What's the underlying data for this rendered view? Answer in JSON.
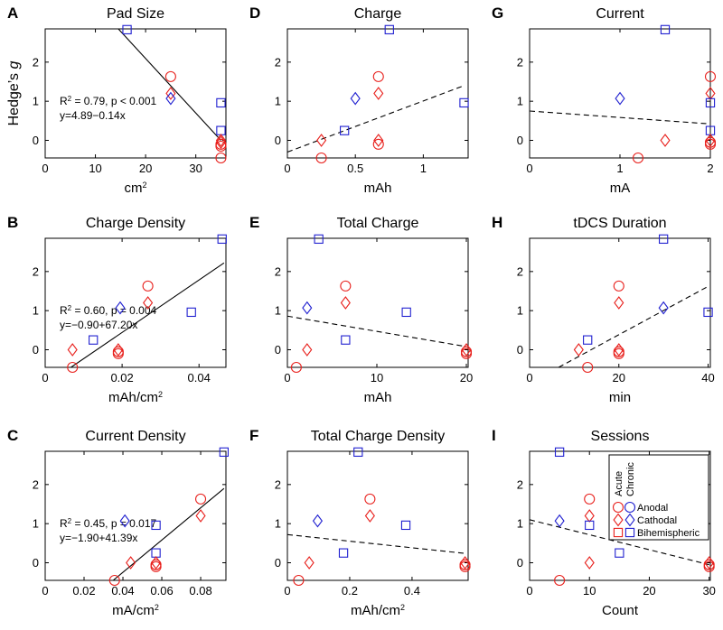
{
  "colors": {
    "acute": "#e8201c",
    "chronic": "#2020d0",
    "axis": "#000000"
  },
  "legend": {
    "header_acute": "Acute",
    "header_chronic": "Chronic",
    "rows": [
      "Anodal",
      "Cathodal",
      "Bihemispheric"
    ]
  },
  "chart_data": [
    {
      "id": "A",
      "type": "scatter",
      "title": "Pad Size",
      "xlabel": "cm",
      "xlabel_sup": "2",
      "ylabel_prefix": "Hedge’s ",
      "ylabel_italic": "g",
      "xlim": [
        0,
        36
      ],
      "ylim": [
        -0.45,
        2.85
      ],
      "xticks": [
        0,
        10,
        20,
        30
      ],
      "xtick_labels": [
        "0",
        "10",
        "20",
        "30"
      ],
      "yticks": [
        0,
        1,
        2
      ],
      "ytick_labels": [
        "0",
        "1",
        "2"
      ],
      "fit": {
        "style": "solid",
        "x": [
          14.5,
          35
        ],
        "y": [
          2.86,
          0.0
        ]
      },
      "annotation": [
        "R",
        "2",
        " = 0.79, p < 0.001",
        "y=4.89−0.14x"
      ],
      "points": [
        {
          "x": 16.3,
          "y": 2.83,
          "marker": "square",
          "group": "chronic"
        },
        {
          "x": 25,
          "y": 1.63,
          "marker": "circle",
          "group": "acute"
        },
        {
          "x": 25,
          "y": 1.2,
          "marker": "diamond",
          "group": "acute"
        },
        {
          "x": 25,
          "y": 1.07,
          "marker": "diamond",
          "group": "chronic"
        },
        {
          "x": 35,
          "y": 0.96,
          "marker": "square",
          "group": "chronic"
        },
        {
          "x": 35,
          "y": 0.25,
          "marker": "square",
          "group": "chronic"
        },
        {
          "x": 35,
          "y": 0.0,
          "marker": "diamond",
          "group": "acute"
        },
        {
          "x": 35,
          "y": -0.05,
          "marker": "diamond",
          "group": "acute"
        },
        {
          "x": 35,
          "y": -0.1,
          "marker": "circle",
          "group": "acute"
        },
        {
          "x": 35,
          "y": -0.15,
          "marker": "circle",
          "group": "acute"
        },
        {
          "x": 35,
          "y": -0.45,
          "marker": "circle",
          "group": "acute"
        }
      ]
    },
    {
      "id": "D",
      "type": "scatter",
      "title": "Charge",
      "xlabel": "mAh",
      "xlim": [
        0,
        1.33
      ],
      "ylim": [
        -0.45,
        2.85
      ],
      "xticks": [
        0,
        0.5,
        1
      ],
      "xtick_labels": [
        "0",
        "0.5",
        "1"
      ],
      "yticks": [
        0,
        1,
        2
      ],
      "ytick_labels": [
        "0",
        "1",
        "2"
      ],
      "fit": {
        "style": "dashed",
        "x": [
          0,
          1.3
        ],
        "y": [
          -0.3,
          1.4
        ]
      },
      "points": [
        {
          "x": 0.25,
          "y": -0.45,
          "marker": "circle",
          "group": "acute"
        },
        {
          "x": 0.25,
          "y": 0.0,
          "marker": "diamond",
          "group": "acute"
        },
        {
          "x": 0.42,
          "y": 0.25,
          "marker": "square",
          "group": "chronic"
        },
        {
          "x": 0.5,
          "y": 1.07,
          "marker": "diamond",
          "group": "chronic"
        },
        {
          "x": 0.67,
          "y": 1.63,
          "marker": "circle",
          "group": "acute"
        },
        {
          "x": 0.67,
          "y": 1.2,
          "marker": "diamond",
          "group": "acute"
        },
        {
          "x": 0.67,
          "y": 0.0,
          "marker": "diamond",
          "group": "acute"
        },
        {
          "x": 0.67,
          "y": -0.1,
          "marker": "circle",
          "group": "acute"
        },
        {
          "x": 0.75,
          "y": 2.83,
          "marker": "square",
          "group": "chronic"
        },
        {
          "x": 1.3,
          "y": 0.96,
          "marker": "square",
          "group": "chronic"
        }
      ]
    },
    {
      "id": "G",
      "type": "scatter",
      "title": "Current",
      "xlabel": "mA",
      "xlim": [
        0,
        2.0
      ],
      "ylim": [
        -0.45,
        2.85
      ],
      "xticks": [
        0,
        1,
        2
      ],
      "xtick_labels": [
        "0",
        "1",
        "2"
      ],
      "yticks": [
        0,
        1,
        2
      ],
      "ytick_labels": [
        "0",
        "1",
        "2"
      ],
      "fit": {
        "style": "dashed",
        "x": [
          0,
          2
        ],
        "y": [
          0.75,
          0.42
        ]
      },
      "points": [
        {
          "x": 1.0,
          "y": 1.07,
          "marker": "diamond",
          "group": "chronic"
        },
        {
          "x": 1.2,
          "y": -0.45,
          "marker": "circle",
          "group": "acute"
        },
        {
          "x": 1.5,
          "y": 2.83,
          "marker": "square",
          "group": "chronic"
        },
        {
          "x": 1.5,
          "y": 0.0,
          "marker": "diamond",
          "group": "acute"
        },
        {
          "x": 2.0,
          "y": 1.63,
          "marker": "circle",
          "group": "acute"
        },
        {
          "x": 2.0,
          "y": 1.2,
          "marker": "diamond",
          "group": "acute"
        },
        {
          "x": 2.0,
          "y": 0.96,
          "marker": "square",
          "group": "chronic"
        },
        {
          "x": 2.0,
          "y": 0.25,
          "marker": "square",
          "group": "chronic"
        },
        {
          "x": 2.0,
          "y": 0.0,
          "marker": "diamond",
          "group": "acute"
        },
        {
          "x": 2.0,
          "y": -0.05,
          "marker": "circle",
          "group": "acute"
        },
        {
          "x": 2.0,
          "y": -0.1,
          "marker": "circle",
          "group": "acute"
        }
      ]
    },
    {
      "id": "B",
      "type": "scatter",
      "title": "Charge Density",
      "xlabel": "mAh/cm",
      "xlabel_sup": "2",
      "xlim": [
        0,
        0.047
      ],
      "ylim": [
        -0.45,
        2.85
      ],
      "xticks": [
        0,
        0.02,
        0.04
      ],
      "xtick_labels": [
        "0",
        "0.02",
        "0.04"
      ],
      "yticks": [
        0,
        1,
        2
      ],
      "ytick_labels": [
        "0",
        "1",
        "2"
      ],
      "fit": {
        "style": "solid",
        "x": [
          0.0067,
          0.0465
        ],
        "y": [
          -0.45,
          2.22
        ]
      },
      "annotation": [
        "R",
        "2",
        " = 0.60, p = 0.004",
        "y=−0.90+67.20x"
      ],
      "points": [
        {
          "x": 0.0071,
          "y": -0.45,
          "marker": "circle",
          "group": "acute"
        },
        {
          "x": 0.0071,
          "y": 0.0,
          "marker": "diamond",
          "group": "acute"
        },
        {
          "x": 0.0125,
          "y": 0.25,
          "marker": "square",
          "group": "chronic"
        },
        {
          "x": 0.019,
          "y": 0.0,
          "marker": "diamond",
          "group": "acute"
        },
        {
          "x": 0.019,
          "y": -0.05,
          "marker": "circle",
          "group": "acute"
        },
        {
          "x": 0.019,
          "y": -0.1,
          "marker": "circle",
          "group": "acute"
        },
        {
          "x": 0.0195,
          "y": 1.07,
          "marker": "diamond",
          "group": "chronic"
        },
        {
          "x": 0.0267,
          "y": 1.63,
          "marker": "circle",
          "group": "acute"
        },
        {
          "x": 0.0267,
          "y": 1.2,
          "marker": "diamond",
          "group": "acute"
        },
        {
          "x": 0.038,
          "y": 0.96,
          "marker": "square",
          "group": "chronic"
        },
        {
          "x": 0.046,
          "y": 2.83,
          "marker": "square",
          "group": "chronic"
        }
      ]
    },
    {
      "id": "E",
      "type": "scatter",
      "title": "Total Charge",
      "xlabel": "mAh",
      "xlim": [
        0,
        20.2
      ],
      "ylim": [
        -0.45,
        2.85
      ],
      "xticks": [
        0,
        10,
        20
      ],
      "xtick_labels": [
        "0",
        "10",
        "20"
      ],
      "yticks": [
        0,
        1,
        2
      ],
      "ytick_labels": [
        "0",
        "1",
        "2"
      ],
      "fit": {
        "style": "dashed",
        "x": [
          0,
          20
        ],
        "y": [
          0.86,
          0.08
        ]
      },
      "points": [
        {
          "x": 1.0,
          "y": -0.45,
          "marker": "circle",
          "group": "acute"
        },
        {
          "x": 2.2,
          "y": 1.07,
          "marker": "diamond",
          "group": "chronic"
        },
        {
          "x": 2.2,
          "y": 0.0,
          "marker": "diamond",
          "group": "acute"
        },
        {
          "x": 3.5,
          "y": 2.83,
          "marker": "square",
          "group": "chronic"
        },
        {
          "x": 6.5,
          "y": 1.63,
          "marker": "circle",
          "group": "acute"
        },
        {
          "x": 6.5,
          "y": 1.2,
          "marker": "diamond",
          "group": "acute"
        },
        {
          "x": 6.5,
          "y": 0.25,
          "marker": "square",
          "group": "chronic"
        },
        {
          "x": 13.3,
          "y": 0.96,
          "marker": "square",
          "group": "chronic"
        },
        {
          "x": 20,
          "y": 0.0,
          "marker": "diamond",
          "group": "acute"
        },
        {
          "x": 20,
          "y": -0.05,
          "marker": "circle",
          "group": "acute"
        },
        {
          "x": 20,
          "y": -0.1,
          "marker": "circle",
          "group": "acute"
        }
      ]
    },
    {
      "id": "H",
      "type": "scatter",
      "title": "tDCS Duration",
      "xlabel": "min",
      "xlim": [
        0,
        40.5
      ],
      "ylim": [
        -0.45,
        2.85
      ],
      "xticks": [
        0,
        20,
        40
      ],
      "xtick_labels": [
        "0",
        "20",
        "40"
      ],
      "yticks": [
        0,
        1,
        2
      ],
      "ytick_labels": [
        "0",
        "1",
        "2"
      ],
      "fit": {
        "style": "dashed",
        "x": [
          6.5,
          40
        ],
        "y": [
          -0.45,
          1.62
        ]
      },
      "points": [
        {
          "x": 11,
          "y": 0.0,
          "marker": "diamond",
          "group": "acute"
        },
        {
          "x": 13,
          "y": 0.25,
          "marker": "square",
          "group": "chronic"
        },
        {
          "x": 13,
          "y": -0.45,
          "marker": "circle",
          "group": "acute"
        },
        {
          "x": 20,
          "y": 1.63,
          "marker": "circle",
          "group": "acute"
        },
        {
          "x": 20,
          "y": 1.2,
          "marker": "diamond",
          "group": "acute"
        },
        {
          "x": 20,
          "y": 0.0,
          "marker": "diamond",
          "group": "acute"
        },
        {
          "x": 20,
          "y": -0.05,
          "marker": "circle",
          "group": "acute"
        },
        {
          "x": 20,
          "y": -0.1,
          "marker": "circle",
          "group": "acute"
        },
        {
          "x": 30,
          "y": 2.83,
          "marker": "square",
          "group": "chronic"
        },
        {
          "x": 30,
          "y": 1.07,
          "marker": "diamond",
          "group": "chronic"
        },
        {
          "x": 40,
          "y": 0.96,
          "marker": "square",
          "group": "chronic"
        }
      ]
    },
    {
      "id": "C",
      "type": "scatter",
      "title": "Current Density",
      "xlabel": "mA/cm",
      "xlabel_sup": "2",
      "xlim": [
        0,
        0.093
      ],
      "ylim": [
        -0.45,
        2.85
      ],
      "xticks": [
        0,
        0.02,
        0.04,
        0.06,
        0.08
      ],
      "xtick_labels": [
        "0",
        "0.02",
        "0.04",
        "0.06",
        "0.08"
      ],
      "yticks": [
        0,
        1,
        2
      ],
      "ytick_labels": [
        "0",
        "1",
        "2"
      ],
      "fit": {
        "style": "solid",
        "x": [
          0.035,
          0.092
        ],
        "y": [
          -0.45,
          1.9
        ]
      },
      "annotation": [
        "R",
        "2",
        " = 0.45, p = 0.017",
        "y=−1.90+41.39x"
      ],
      "points": [
        {
          "x": 0.0357,
          "y": -0.45,
          "marker": "circle",
          "group": "acute"
        },
        {
          "x": 0.041,
          "y": 1.07,
          "marker": "diamond",
          "group": "chronic"
        },
        {
          "x": 0.044,
          "y": 0.0,
          "marker": "diamond",
          "group": "acute"
        },
        {
          "x": 0.057,
          "y": 0.96,
          "marker": "square",
          "group": "chronic"
        },
        {
          "x": 0.057,
          "y": 0.25,
          "marker": "square",
          "group": "chronic"
        },
        {
          "x": 0.057,
          "y": 0.0,
          "marker": "diamond",
          "group": "acute"
        },
        {
          "x": 0.057,
          "y": -0.05,
          "marker": "circle",
          "group": "acute"
        },
        {
          "x": 0.057,
          "y": -0.1,
          "marker": "circle",
          "group": "acute"
        },
        {
          "x": 0.08,
          "y": 1.63,
          "marker": "circle",
          "group": "acute"
        },
        {
          "x": 0.08,
          "y": 1.2,
          "marker": "diamond",
          "group": "acute"
        },
        {
          "x": 0.092,
          "y": 2.83,
          "marker": "square",
          "group": "chronic"
        }
      ]
    },
    {
      "id": "F",
      "type": "scatter",
      "title": "Total Charge Density",
      "xlabel": "mAh/cm",
      "xlabel_sup": "2",
      "xlim": [
        0,
        0.58
      ],
      "ylim": [
        -0.45,
        2.85
      ],
      "xticks": [
        0,
        0.2,
        0.4
      ],
      "xtick_labels": [
        "0",
        "0.2",
        "0.4"
      ],
      "yticks": [
        0,
        1,
        2
      ],
      "ytick_labels": [
        "0",
        "1",
        "2"
      ],
      "fit": {
        "style": "dashed",
        "x": [
          0,
          0.57
        ],
        "y": [
          0.72,
          0.24
        ]
      },
      "points": [
        {
          "x": 0.036,
          "y": -0.45,
          "marker": "circle",
          "group": "acute"
        },
        {
          "x": 0.07,
          "y": 0.0,
          "marker": "diamond",
          "group": "acute"
        },
        {
          "x": 0.097,
          "y": 1.07,
          "marker": "diamond",
          "group": "chronic"
        },
        {
          "x": 0.18,
          "y": 0.25,
          "marker": "square",
          "group": "chronic"
        },
        {
          "x": 0.227,
          "y": 2.83,
          "marker": "square",
          "group": "chronic"
        },
        {
          "x": 0.265,
          "y": 1.63,
          "marker": "circle",
          "group": "acute"
        },
        {
          "x": 0.265,
          "y": 1.2,
          "marker": "diamond",
          "group": "acute"
        },
        {
          "x": 0.38,
          "y": 0.96,
          "marker": "square",
          "group": "chronic"
        },
        {
          "x": 0.57,
          "y": 0.0,
          "marker": "diamond",
          "group": "acute"
        },
        {
          "x": 0.57,
          "y": -0.05,
          "marker": "circle",
          "group": "acute"
        },
        {
          "x": 0.57,
          "y": -0.1,
          "marker": "circle",
          "group": "acute"
        }
      ]
    },
    {
      "id": "I",
      "type": "scatter",
      "title": "Sessions",
      "xlabel": "Count",
      "xlim": [
        0,
        30.2
      ],
      "ylim": [
        -0.45,
        2.85
      ],
      "xticks": [
        0,
        10,
        20,
        30
      ],
      "xtick_labels": [
        "0",
        "10",
        "20",
        "30"
      ],
      "yticks": [
        0,
        1,
        2
      ],
      "ytick_labels": [
        "0",
        "1",
        "2"
      ],
      "fit": {
        "style": "dashed",
        "x": [
          0,
          30
        ],
        "y": [
          1.1,
          -0.05
        ]
      },
      "legend": true,
      "points": [
        {
          "x": 5,
          "y": 2.83,
          "marker": "square",
          "group": "chronic"
        },
        {
          "x": 5,
          "y": 1.07,
          "marker": "diamond",
          "group": "chronic"
        },
        {
          "x": 5,
          "y": -0.45,
          "marker": "circle",
          "group": "acute"
        },
        {
          "x": 10,
          "y": 1.63,
          "marker": "circle",
          "group": "acute"
        },
        {
          "x": 10,
          "y": 1.2,
          "marker": "diamond",
          "group": "acute"
        },
        {
          "x": 10,
          "y": 0.96,
          "marker": "square",
          "group": "chronic"
        },
        {
          "x": 10,
          "y": 0.0,
          "marker": "diamond",
          "group": "acute"
        },
        {
          "x": 15,
          "y": 0.25,
          "marker": "square",
          "group": "chronic"
        },
        {
          "x": 30,
          "y": 0.0,
          "marker": "diamond",
          "group": "acute"
        },
        {
          "x": 30,
          "y": -0.05,
          "marker": "circle",
          "group": "acute"
        },
        {
          "x": 30,
          "y": -0.1,
          "marker": "circle",
          "group": "acute"
        }
      ]
    }
  ]
}
